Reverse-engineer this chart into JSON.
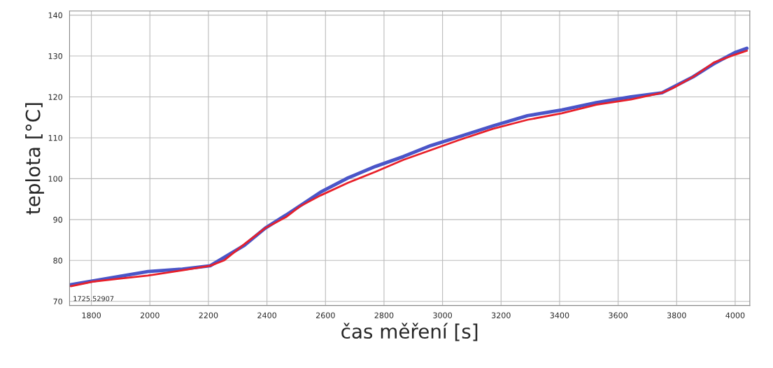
{
  "chart_data": {
    "type": "line",
    "xlabel": "čas měření [s]",
    "ylabel": "teplota [°C]",
    "annotations": [
      "1725.52907"
    ],
    "xlim": [
      1725.5,
      4050
    ],
    "xticks": [
      1800,
      2000,
      2200,
      2400,
      2600,
      2800,
      3000,
      3200,
      3400,
      3600,
      3800,
      4000
    ],
    "ylim": [
      69,
      141
    ],
    "yticks": [
      70,
      80,
      90,
      100,
      110,
      120,
      130,
      140
    ],
    "grid": true,
    "marker": "none",
    "line_style": "solid",
    "series": [
      {
        "color": "#4a55c8",
        "x": [
          1730,
          1993,
          2111,
          2206,
          2323,
          2394,
          2465,
          2583,
          2677,
          2771,
          2866,
          2960,
          3054,
          3172,
          3290,
          3408,
          3526,
          3644,
          3750,
          3856,
          3927,
          3998,
          4040
        ],
        "values": [
          74.1,
          77.3,
          77.9,
          78.7,
          83.7,
          87.9,
          91.1,
          96.7,
          100.2,
          103.0,
          105.4,
          108.1,
          110.2,
          112.9,
          115.4,
          116.8,
          118.6,
          120.0,
          121.0,
          124.9,
          128.1,
          130.8,
          131.9
        ]
      },
      {
        "color": "#e8202a",
        "x": [
          1730,
          1805,
          1899,
          1993,
          2111,
          2206,
          2253,
          2323,
          2394,
          2465,
          2512,
          2583,
          2677,
          2771,
          2866,
          2960,
          3054,
          3172,
          3290,
          3408,
          3526,
          3644,
          3750,
          3786,
          3856,
          3927,
          3998,
          4040
        ],
        "values": [
          73.7,
          74.8,
          75.6,
          76.3,
          77.6,
          78.7,
          80.0,
          84.0,
          87.9,
          90.6,
          93.2,
          95.9,
          99.0,
          101.7,
          104.6,
          107.0,
          109.4,
          112.2,
          114.4,
          116.0,
          118.1,
          119.4,
          121.0,
          122.1,
          124.9,
          128.4,
          130.3,
          131.3
        ]
      }
    ]
  }
}
